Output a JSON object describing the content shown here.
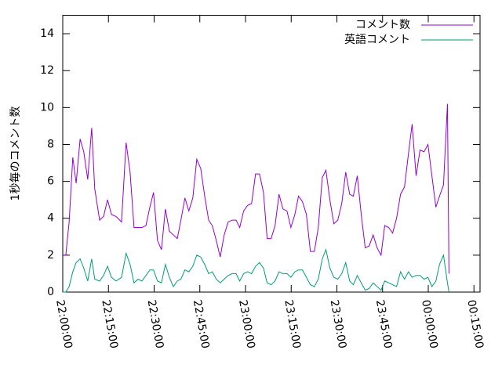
{
  "chart_data": {
    "type": "line",
    "y_label": "1秒毎のコメント数",
    "x": [
      0,
      1,
      2.1,
      3.3,
      4.4,
      5.7,
      6.9,
      8.2,
      9.5,
      10.5,
      12.1,
      13.4,
      14.7,
      16,
      17.5,
      19.3,
      20.8,
      22.1,
      23.4,
      24.7,
      26,
      27.3,
      28.6,
      29.8,
      31.1,
      32.4,
      33.7,
      35,
      36.3,
      37.6,
      38.8,
      40.1,
      41.4,
      42.7,
      44,
      45.3,
      46.6,
      47.9,
      49.1,
      50.4,
      51.7,
      53,
      54.3,
      55.6,
      56.9,
      58.1,
      59.4,
      60.7,
      62,
      63.3,
      64.6,
      65.9,
      67.1,
      68.4,
      69.7,
      71,
      72.3,
      73.6,
      74.9,
      76.2,
      77.4,
      78.7,
      80,
      81.3,
      82.6,
      83.9,
      85.2,
      86.4,
      87.7,
      89,
      90.3,
      91.6,
      92.9,
      94.2,
      95.4,
      96.7,
      98,
      99.3,
      100.6,
      101.9,
      103.2,
      104.5,
      105.7,
      107,
      108.3,
      109.6,
      110.9,
      112.2,
      113.5,
      114.7,
      116,
      117.3,
      118.6,
      119.9,
      121.2,
      122.5,
      123.7,
      125,
      126.3,
      126.8
    ],
    "series": [
      {
        "name": "コメント数",
        "color": "#9400d3",
        "values": [
          2,
          2,
          3.8,
          7.3,
          5.9,
          8.3,
          7.6,
          6.1,
          8.9,
          5.6,
          3.9,
          4.1,
          5,
          4.2,
          4.1,
          3.8,
          8.1,
          6.5,
          3.5,
          3.5,
          3.5,
          3.6,
          4.6,
          5.4,
          2.8,
          2.3,
          4.5,
          3.3,
          3.1,
          2.9,
          3.9,
          5.1,
          4.4,
          5.1,
          7.2,
          6.7,
          5.2,
          3.9,
          3.6,
          2.8,
          1.9,
          3.1,
          3.8,
          3.9,
          3.9,
          3.5,
          4.4,
          4.7,
          4.8,
          6.4,
          6.4,
          5.4,
          2.9,
          2.9,
          3.6,
          5.3,
          4.5,
          4.4,
          3.5,
          4.2,
          5.2,
          4.9,
          4.2,
          2.2,
          2.2,
          3.5,
          6.2,
          6.6,
          5,
          3.7,
          3.9,
          4.8,
          6.5,
          5.3,
          5.2,
          6.3,
          4.2,
          2.4,
          2.5,
          3.1,
          2.4,
          2,
          3.6,
          3.5,
          3.2,
          4,
          5.3,
          5.7,
          7.5,
          9.1,
          6.3,
          7.7,
          7.6,
          8,
          6.3,
          4.6,
          5.2,
          5.8,
          10.2,
          1
        ]
      },
      {
        "name": "英語コメント",
        "color": "#009e73",
        "values": [
          0,
          0,
          0.3,
          1.1,
          1.6,
          1.8,
          1.3,
          0.6,
          1.8,
          0.7,
          0.6,
          0.9,
          1.4,
          0.8,
          0.6,
          0.8,
          2.1,
          1.5,
          0.5,
          0.7,
          0.6,
          0.9,
          1.2,
          1.2,
          0.6,
          0.5,
          1.5,
          0.8,
          0.3,
          0.6,
          0.7,
          1.2,
          1.1,
          1.4,
          2,
          1.9,
          1.5,
          1,
          1.1,
          0.7,
          0.5,
          0.7,
          0.9,
          1,
          1,
          0.6,
          1,
          1.1,
          1,
          1.4,
          1.6,
          1.3,
          0.5,
          0.4,
          0.6,
          1.1,
          1,
          1,
          0.8,
          1.1,
          1.2,
          1.2,
          0.8,
          0.4,
          0.3,
          0.7,
          1.8,
          2.3,
          1.3,
          0.8,
          0.7,
          1,
          1.6,
          0.6,
          0.4,
          0.9,
          0.5,
          0.1,
          0.2,
          0.5,
          0.3,
          0.1,
          0.6,
          0.5,
          0.4,
          0.3,
          1.1,
          0.7,
          1.1,
          0.8,
          0.9,
          0.9,
          0.7,
          0.8,
          0.3,
          0.6,
          1.5,
          2,
          0.5,
          0
        ]
      }
    ],
    "xlim": [
      0,
      137
    ],
    "xticks": [
      {
        "value": 0,
        "label": "22:00:00"
      },
      {
        "value": 15,
        "label": "22:15:00"
      },
      {
        "value": 30,
        "label": "22:30:00"
      },
      {
        "value": 45,
        "label": "22:45:00"
      },
      {
        "value": 60,
        "label": "23:00:00"
      },
      {
        "value": 75,
        "label": "23:15:00"
      },
      {
        "value": 90,
        "label": "23:30:00"
      },
      {
        "value": 105,
        "label": "23:45:00"
      },
      {
        "value": 120,
        "label": "00:00:00"
      },
      {
        "value": 135,
        "label": "00:15:00"
      }
    ],
    "ylim": [
      0,
      15
    ],
    "yticks": [
      0,
      2,
      4,
      6,
      8,
      10,
      12,
      14
    ],
    "legend": "top-right"
  }
}
